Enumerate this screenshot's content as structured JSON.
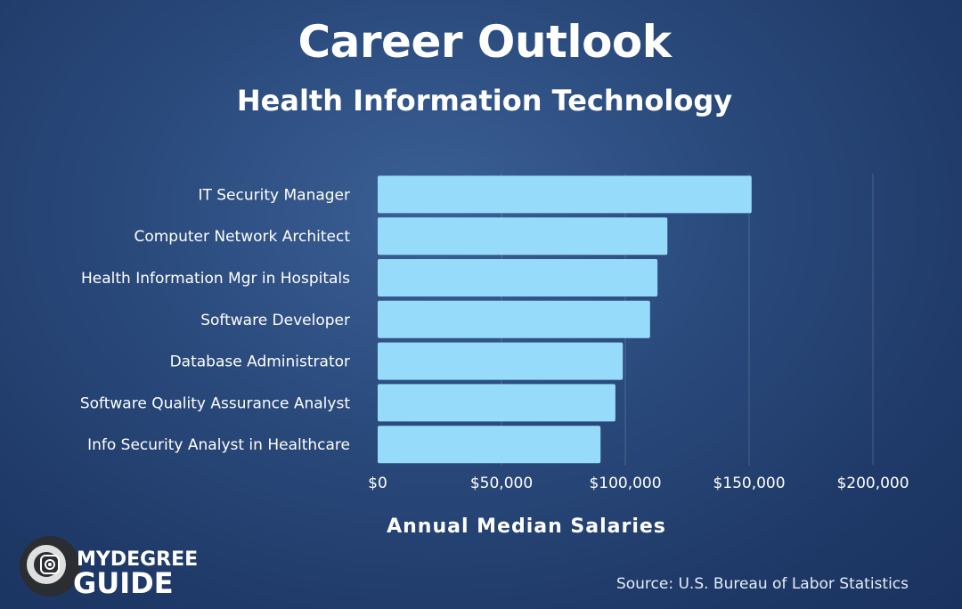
{
  "header": {
    "title": "Career Outlook",
    "subtitle": "Health Information Technology"
  },
  "chart_data": {
    "type": "bar",
    "orientation": "horizontal",
    "title": "Career Outlook",
    "subtitle": "Health Information Technology",
    "xlabel": "Annual Median Salaries",
    "ylabel": "",
    "xlim": [
      0,
      200000
    ],
    "xticks": [
      0,
      50000,
      100000,
      150000,
      200000
    ],
    "xtick_labels": [
      "$0",
      "$50,000",
      "$100,000",
      "$150,000",
      "$200,000"
    ],
    "grid": "vertical gridlines",
    "categories": [
      "IT Security Manager",
      "Computer Network Architect",
      "Health Information Mgr in Hospitals",
      "Software Developer",
      "Database Administrator",
      "Software Quality Assurance Analyst",
      "Info Security Analyst in Healthcare"
    ],
    "values": [
      151000,
      117000,
      113000,
      110000,
      99000,
      96000,
      90000
    ],
    "bar_color": "#96dcfa"
  },
  "footer": {
    "source": "Source: U.S. Bureau of Labor Statistics",
    "logo_top": "MYDEGREE",
    "logo_bottom": "GUIDE"
  }
}
